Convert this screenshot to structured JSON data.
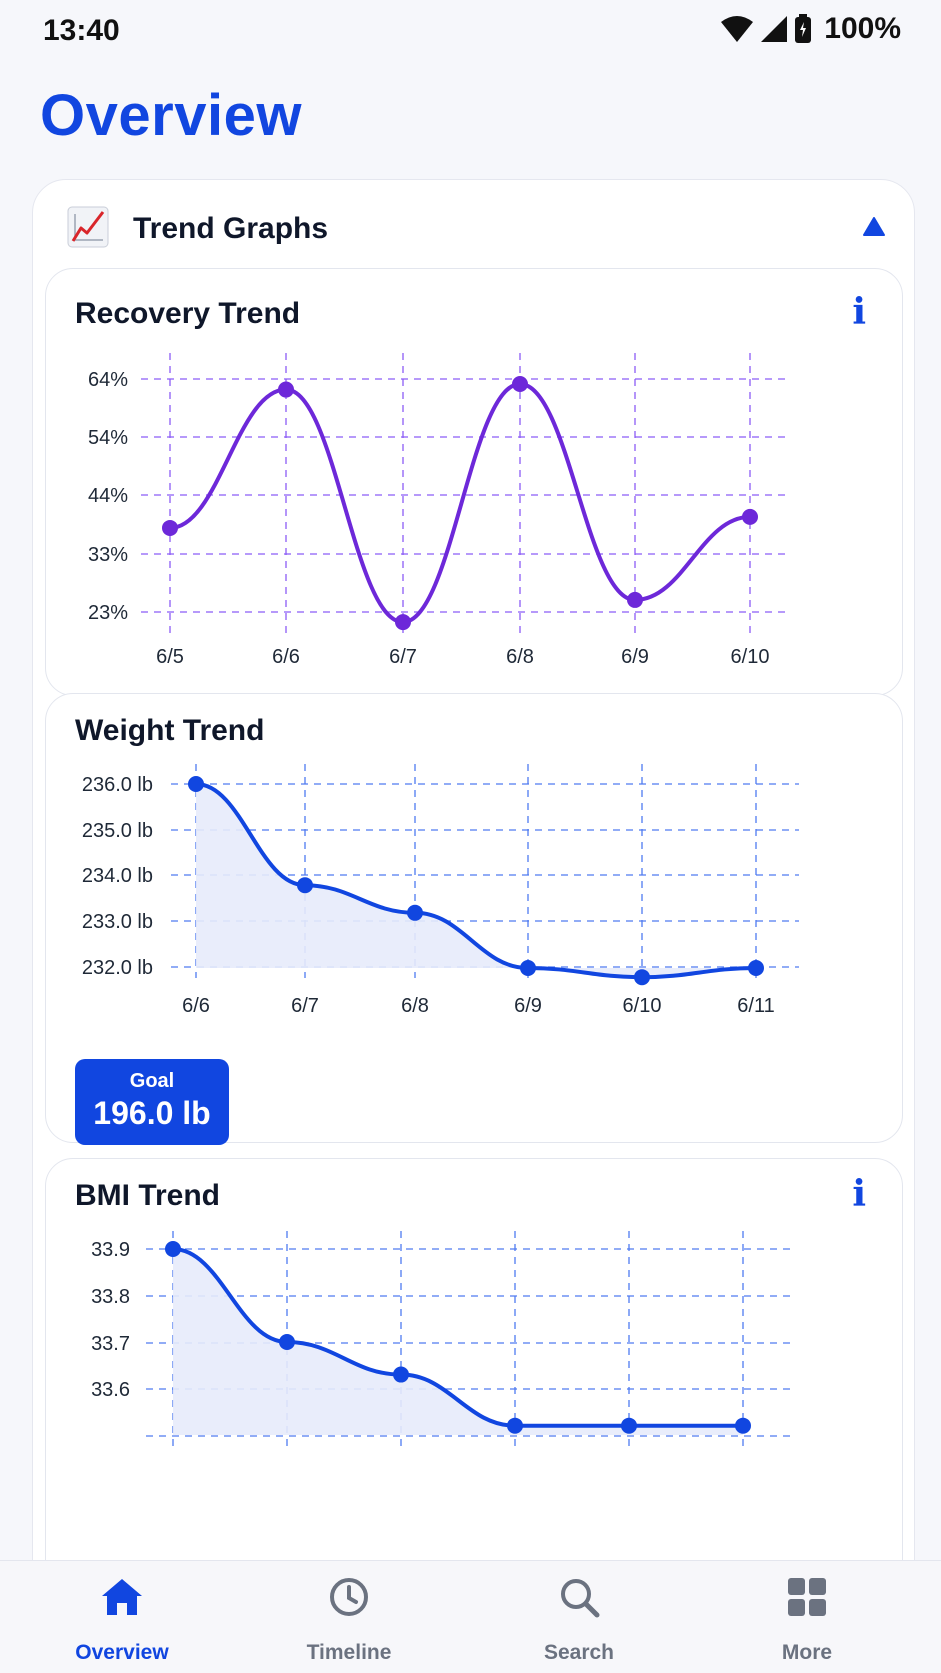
{
  "status_bar": {
    "time": "13:40",
    "battery": "100%"
  },
  "page": {
    "title": "Overview"
  },
  "section": {
    "emoji": "chart-increasing-icon",
    "title": "Trend Graphs",
    "expanded": true
  },
  "colors": {
    "accent": "#1146e0",
    "recovery_line": "#6d28d9",
    "recovery_grid": "#8b5cf6",
    "blue_grid": "#4f7bf0",
    "fill": "#e7ebfb"
  },
  "recovery": {
    "title": "Recovery Trend",
    "info": "i",
    "y_ticks": [
      "64%",
      "54%",
      "44%",
      "33%",
      "23%"
    ],
    "x_ticks": [
      "6/5",
      "6/6",
      "6/7",
      "6/8",
      "6/9",
      "6/10"
    ]
  },
  "weight": {
    "title": "Weight Trend",
    "y_ticks": [
      "236.0 lb",
      "235.0 lb",
      "234.0 lb",
      "233.0 lb",
      "232.0 lb"
    ],
    "x_ticks": [
      "6/6",
      "6/7",
      "6/8",
      "6/9",
      "6/10",
      "6/11"
    ],
    "goal_label": "Goal",
    "goal_value": "196.0 lb"
  },
  "bmi": {
    "title": "BMI Trend",
    "info": "i",
    "y_ticks": [
      "33.9",
      "33.8",
      "33.7",
      "33.6"
    ]
  },
  "nav": {
    "items": [
      {
        "label": "Overview",
        "icon": "home-icon",
        "active": true
      },
      {
        "label": "Timeline",
        "icon": "clock-icon",
        "active": false
      },
      {
        "label": "Search",
        "icon": "search-icon",
        "active": false
      },
      {
        "label": "More",
        "icon": "grid-icon",
        "active": false
      }
    ]
  },
  "chart_data": [
    {
      "type": "line",
      "title": "Recovery Trend",
      "categories": [
        "6/5",
        "6/6",
        "6/7",
        "6/8",
        "6/9",
        "6/10"
      ],
      "values": [
        38,
        63,
        21,
        64,
        25,
        40
      ],
      "ylim": [
        23,
        64
      ],
      "y_unit": "%",
      "grid": true
    },
    {
      "type": "area",
      "title": "Weight Trend",
      "categories": [
        "6/6",
        "6/7",
        "6/8",
        "6/9",
        "6/10",
        "6/11"
      ],
      "values": [
        236.0,
        233.8,
        233.2,
        232.0,
        231.8,
        232.0
      ],
      "ylim": [
        232.0,
        236.0
      ],
      "y_unit": "lb",
      "grid": true
    },
    {
      "type": "area",
      "title": "BMI Trend",
      "categories": [
        "",
        "",
        "",
        "",
        "",
        ""
      ],
      "values": [
        33.9,
        33.7,
        33.63,
        33.52,
        33.52,
        33.52
      ],
      "ylim": [
        33.5,
        33.9
      ],
      "grid": true
    }
  ]
}
